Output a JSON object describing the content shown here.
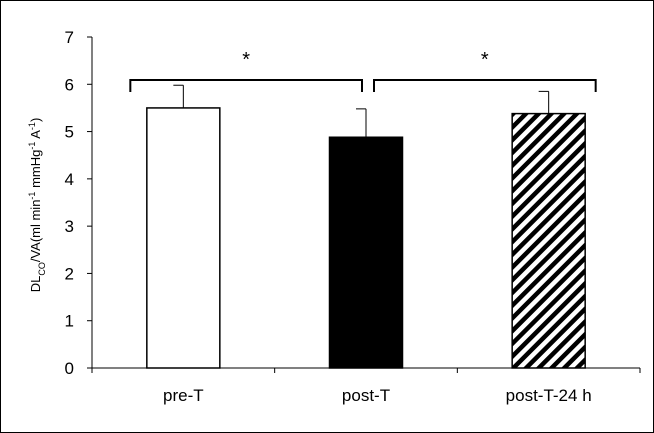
{
  "chart_data": {
    "type": "bar",
    "ylabel_parts": [
      "DL",
      "CO",
      "/VA(ml min",
      "-1",
      " mmHg",
      "-1",
      " A",
      "-1",
      ")"
    ],
    "categories": [
      "pre-T",
      "post-T",
      "post-T-24 h"
    ],
    "values": [
      5.5,
      4.88,
      5.38
    ],
    "errors": [
      0.48,
      0.6,
      0.47
    ],
    "fills": [
      "#ffffff",
      "#000000",
      "hatch"
    ],
    "ylim": [
      0,
      7
    ],
    "yticks": [
      0,
      1,
      2,
      3,
      4,
      5,
      6,
      7
    ],
    "annotations": [
      {
        "text": "*",
        "from": 0,
        "to": 1
      },
      {
        "text": "*",
        "from": 1,
        "to": 2
      }
    ]
  }
}
